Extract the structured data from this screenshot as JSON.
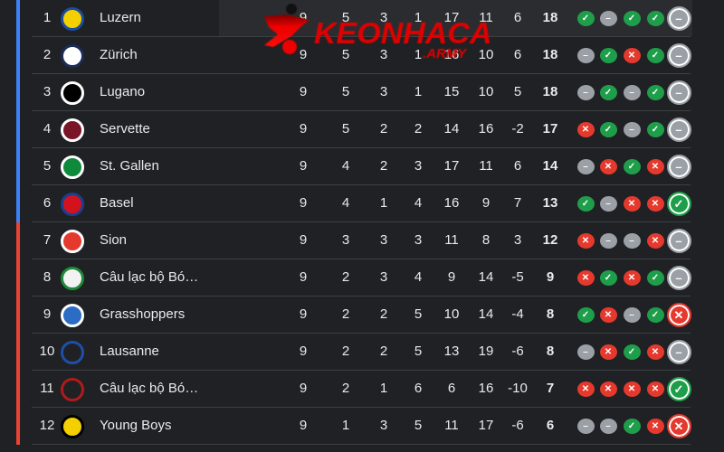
{
  "colors": {
    "qualify": "#3b82f6",
    "relegation": "#ea4335",
    "win": "#1e9e4a",
    "loss": "#e5392e",
    "draw": "#9aa0a6"
  },
  "watermark": {
    "text": "KEONHACAI",
    "suffix": ".ARMY"
  },
  "form_icons": {
    "W": "✓",
    "L": "✕",
    "D": "–"
  },
  "rows": [
    {
      "rank": "1",
      "team": "Luzern",
      "logo": "FCL",
      "logo_colors": [
        "#f5d000",
        "#1a4ea0"
      ],
      "zone": "qualify",
      "p": "9",
      "w": "5",
      "d": "3",
      "l": "1",
      "gf": "17",
      "ga": "11",
      "gd": "6",
      "pts": "18",
      "form": [
        "W",
        "D",
        "W",
        "W",
        "D"
      ]
    },
    {
      "rank": "2",
      "team": "Zürich",
      "logo": "FCZ",
      "logo_colors": [
        "#ffffff",
        "#1b2c5a"
      ],
      "zone": "qualify",
      "p": "9",
      "w": "5",
      "d": "3",
      "l": "1",
      "gf": "16",
      "ga": "10",
      "gd": "6",
      "pts": "18",
      "form": [
        "D",
        "W",
        "L",
        "W",
        "D"
      ]
    },
    {
      "rank": "3",
      "team": "Lugano",
      "logo": "LF",
      "logo_colors": [
        "#000000",
        "#ffffff"
      ],
      "zone": "qualify",
      "p": "9",
      "w": "5",
      "d": "3",
      "l": "1",
      "gf": "15",
      "ga": "10",
      "gd": "5",
      "pts": "18",
      "form": [
        "D",
        "W",
        "D",
        "W",
        "D"
      ]
    },
    {
      "rank": "4",
      "team": "Servette",
      "logo": "S",
      "logo_colors": [
        "#7a1428",
        "#ffffff"
      ],
      "zone": "qualify",
      "p": "9",
      "w": "5",
      "d": "2",
      "l": "2",
      "gf": "14",
      "ga": "16",
      "gd": "-2",
      "pts": "17",
      "form": [
        "L",
        "W",
        "D",
        "W",
        "D"
      ]
    },
    {
      "rank": "5",
      "team": "St. Gallen",
      "logo": "FCSG",
      "logo_colors": [
        "#0f8a3c",
        "#ffffff"
      ],
      "zone": "qualify",
      "p": "9",
      "w": "4",
      "d": "2",
      "l": "3",
      "gf": "17",
      "ga": "11",
      "gd": "6",
      "pts": "14",
      "form": [
        "D",
        "L",
        "W",
        "L",
        "D"
      ]
    },
    {
      "rank": "6",
      "team": "Basel",
      "logo": "FCB",
      "logo_colors": [
        "#d4121e",
        "#1b3f8f"
      ],
      "zone": "qualify",
      "p": "9",
      "w": "4",
      "d": "1",
      "l": "4",
      "gf": "16",
      "ga": "9",
      "gd": "7",
      "pts": "13",
      "form": [
        "W",
        "D",
        "L",
        "L",
        "W"
      ]
    },
    {
      "rank": "7",
      "team": "Sion",
      "logo": "SION",
      "logo_colors": [
        "#e5392e",
        "#ffffff"
      ],
      "zone": "relegation",
      "p": "9",
      "w": "3",
      "d": "3",
      "l": "3",
      "gf": "11",
      "ga": "8",
      "gd": "3",
      "pts": "12",
      "form": [
        "L",
        "D",
        "D",
        "L",
        "D"
      ]
    },
    {
      "rank": "8",
      "team": "Câu lạc bộ Bó…",
      "logo": "YS",
      "logo_colors": [
        "#f2f2f2",
        "#1e8a3a"
      ],
      "zone": "relegation",
      "p": "9",
      "w": "2",
      "d": "3",
      "l": "4",
      "gf": "9",
      "ga": "14",
      "gd": "-5",
      "pts": "9",
      "form": [
        "L",
        "W",
        "L",
        "W",
        "D"
      ]
    },
    {
      "rank": "9",
      "team": "Grasshoppers",
      "logo": "GC",
      "logo_colors": [
        "#2b6cc4",
        "#ffffff"
      ],
      "zone": "relegation",
      "p": "9",
      "w": "2",
      "d": "2",
      "l": "5",
      "gf": "10",
      "ga": "14",
      "gd": "-4",
      "pts": "8",
      "form": [
        "W",
        "L",
        "D",
        "W",
        "L"
      ]
    },
    {
      "rank": "10",
      "team": "Lausanne",
      "logo": "LS",
      "logo_colors": [
        "#202124",
        "#1e4fa8"
      ],
      "zone": "relegation",
      "p": "9",
      "w": "2",
      "d": "2",
      "l": "5",
      "gf": "13",
      "ga": "19",
      "gd": "-6",
      "pts": "8",
      "form": [
        "D",
        "L",
        "W",
        "L",
        "D"
      ]
    },
    {
      "rank": "11",
      "team": "Câu lạc bộ Bó…",
      "logo": "W",
      "logo_colors": [
        "#202124",
        "#b01b1b"
      ],
      "zone": "relegation",
      "p": "9",
      "w": "2",
      "d": "1",
      "l": "6",
      "gf": "6",
      "ga": "16",
      "gd": "-10",
      "pts": "7",
      "form": [
        "L",
        "L",
        "L",
        "L",
        "W"
      ]
    },
    {
      "rank": "12",
      "team": "Young Boys",
      "logo": "YB",
      "logo_colors": [
        "#f5d000",
        "#000000"
      ],
      "zone": "relegation",
      "p": "9",
      "w": "1",
      "d": "3",
      "l": "5",
      "gf": "11",
      "ga": "17",
      "gd": "-6",
      "pts": "6",
      "form": [
        "D",
        "D",
        "W",
        "L",
        "L"
      ]
    }
  ]
}
